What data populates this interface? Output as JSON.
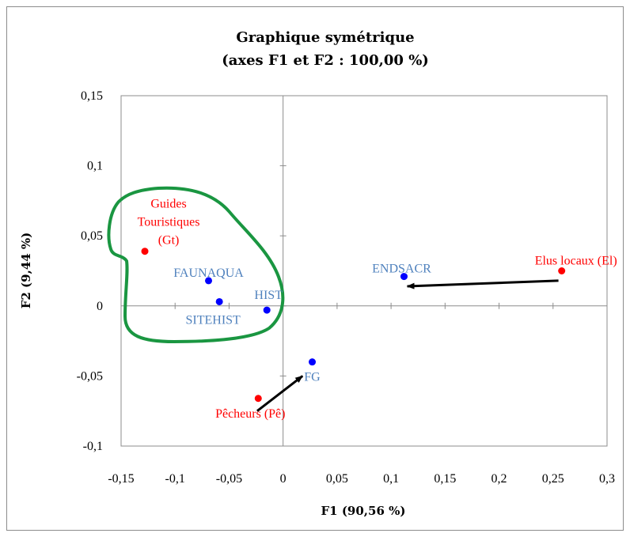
{
  "chart_data": {
    "type": "scatter",
    "title": "Graphique symétrique",
    "subtitle": "(axes F1 et F2 : 100,00 %)",
    "xlabel": "F1 (90,56 %)",
    "ylabel": "F2 (9,44 %)",
    "xlim": [
      -0.15,
      0.3
    ],
    "ylim": [
      -0.1,
      0.15
    ],
    "x_ticks": [
      -0.15,
      -0.1,
      -0.05,
      0,
      0.05,
      0.1,
      0.15,
      0.2,
      0.25,
      0.3
    ],
    "x_tick_labels": [
      "-0,15",
      "-0,1",
      "-0,05",
      "0",
      "0,05",
      "0,1",
      "0,15",
      "0,2",
      "0,25",
      "0,3"
    ],
    "y_ticks": [
      -0.1,
      -0.05,
      0,
      0.05,
      0.1,
      0.15
    ],
    "y_tick_labels": [
      "-0,1",
      "-0,05",
      "0",
      "0,05",
      "0,1",
      "0,15"
    ],
    "grid": false,
    "series": [
      {
        "color": "#ff0000",
        "points": [
          {
            "x": -0.128,
            "y": 0.039,
            "label": [
              "Guides",
              "Touristiques",
              "(Gt)"
            ]
          },
          {
            "x": 0.258,
            "y": 0.025,
            "label": [
              "Elus locaux (El)"
            ]
          },
          {
            "x": -0.023,
            "y": -0.066,
            "label": [
              "Pêcheurs (Pê)"
            ]
          }
        ]
      },
      {
        "color": "#0000ff",
        "label_color": "#4f81bd",
        "points": [
          {
            "x": -0.069,
            "y": 0.018,
            "label": [
              "FAUNAQUA"
            ]
          },
          {
            "x": -0.059,
            "y": 0.003,
            "label": [
              "SITEHIST"
            ]
          },
          {
            "x": -0.015,
            "y": -0.003,
            "label": [
              "HIST"
            ]
          },
          {
            "x": 0.112,
            "y": 0.021,
            "label": [
              "ENDSACR"
            ]
          },
          {
            "x": 0.027,
            "y": -0.04,
            "label": [
              "FG"
            ]
          }
        ]
      }
    ],
    "annotations": {
      "arrows": [
        {
          "from": [
            0.255,
            0.018
          ],
          "to": [
            0.115,
            0.014
          ],
          "color": "#000000"
        },
        {
          "from": [
            -0.024,
            -0.075
          ],
          "to": [
            0.018,
            -0.05
          ],
          "color": "#000000"
        }
      ],
      "enclosure_color": "#1a9641"
    }
  }
}
